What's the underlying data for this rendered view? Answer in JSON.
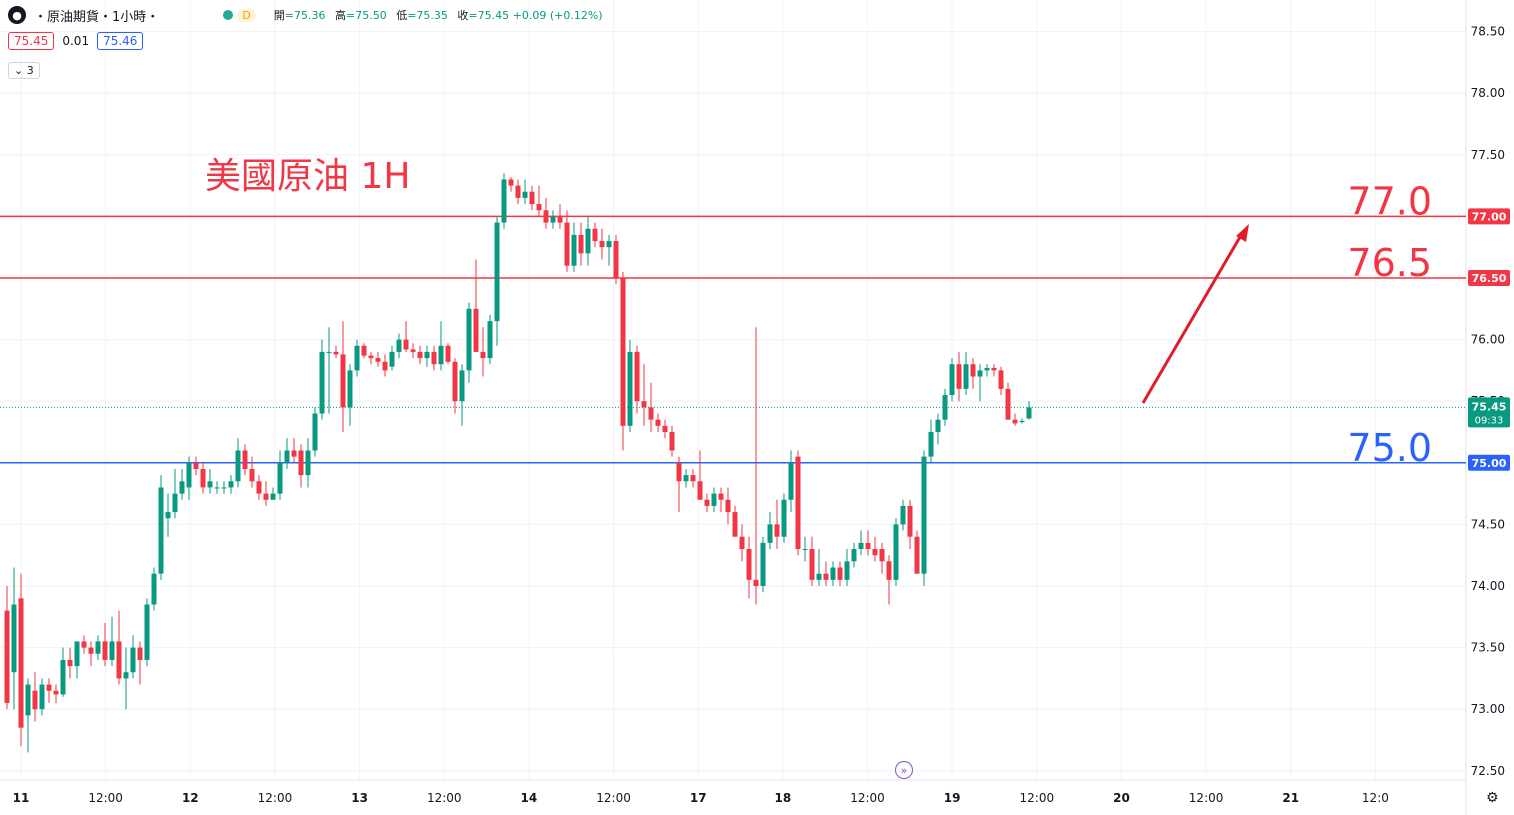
{
  "header": {
    "symbol_icon": "oil-drop-icon",
    "symbol_title": "・原油期貨・1小時・",
    "status_letter": "D",
    "ohlc": [
      {
        "k": "開",
        "v": "=75.36"
      },
      {
        "k": "高",
        "v": "=75.50"
      },
      {
        "k": "低",
        "v": "=75.35"
      },
      {
        "k": "收",
        "v": "=75.45 +0.09 (+0.12%)"
      }
    ]
  },
  "quote": {
    "bid": "75.45",
    "spread": "0.01",
    "ask": "75.46"
  },
  "indicators": {
    "label": "3",
    "icon": "chevron-down-icon"
  },
  "annotation": {
    "title": "美國原油 1H"
  },
  "colors": {
    "up": "#089981",
    "down": "#f23645",
    "support": "#2962ff",
    "resistance": "#f23645",
    "arrow": "#e01e2b"
  },
  "chart_data": {
    "type": "candlestick",
    "ylim": [
      72.45,
      78.6
    ],
    "y_ticks": [
      "78.50",
      "78.00",
      "77.50",
      "77.00",
      "76.50",
      "76.00",
      "75.50",
      "75.00",
      "74.50",
      "74.00",
      "73.50",
      "73.00",
      "72.50"
    ],
    "x_labels": [
      "11",
      "12:00",
      "12",
      "12:00",
      "13",
      "12:00",
      "14",
      "12:00",
      "17",
      "18",
      "12:00",
      "19",
      "12:00",
      "20",
      "12:00",
      "21",
      "12:0"
    ],
    "last_price": {
      "value": "75.45",
      "countdown": "09:33"
    },
    "levels": [
      {
        "value": 77.0,
        "tag": "77.00",
        "text": "77.0",
        "color": "#f23645"
      },
      {
        "value": 76.5,
        "tag": "76.50",
        "text": "76.5",
        "color": "#f23645"
      },
      {
        "value": 75.0,
        "tag": "75.00",
        "text": "75.0",
        "color": "#2962ff"
      }
    ],
    "candles": [
      [
        73.8,
        74.0,
        73.0,
        73.05
      ],
      [
        73.3,
        74.15,
        73.0,
        73.85
      ],
      [
        73.9,
        74.1,
        72.7,
        72.85
      ],
      [
        72.95,
        73.25,
        72.65,
        73.2
      ],
      [
        73.15,
        73.3,
        72.9,
        73.0
      ],
      [
        73.0,
        73.25,
        72.95,
        73.2
      ],
      [
        73.2,
        73.25,
        73.05,
        73.15
      ],
      [
        73.15,
        73.2,
        73.05,
        73.12
      ],
      [
        73.12,
        73.5,
        73.1,
        73.4
      ],
      [
        73.4,
        73.5,
        73.25,
        73.35
      ],
      [
        73.35,
        73.55,
        73.25,
        73.55
      ],
      [
        73.55,
        73.6,
        73.45,
        73.5
      ],
      [
        73.5,
        73.55,
        73.35,
        73.45
      ],
      [
        73.45,
        73.6,
        73.4,
        73.55
      ],
      [
        73.55,
        73.7,
        73.35,
        73.4
      ],
      [
        73.4,
        73.75,
        73.35,
        73.55
      ],
      [
        73.55,
        73.8,
        73.2,
        73.25
      ],
      [
        73.25,
        73.5,
        73.0,
        73.3
      ],
      [
        73.3,
        73.6,
        73.25,
        73.5
      ],
      [
        73.5,
        73.55,
        73.2,
        73.4
      ],
      [
        73.4,
        73.9,
        73.35,
        73.85
      ],
      [
        73.85,
        74.15,
        73.8,
        74.1
      ],
      [
        74.1,
        74.9,
        74.05,
        74.8
      ],
      [
        74.55,
        74.75,
        74.4,
        74.6
      ],
      [
        74.6,
        74.95,
        74.55,
        74.75
      ],
      [
        74.75,
        74.95,
        74.7,
        74.85
      ],
      [
        74.8,
        75.05,
        74.7,
        75.0
      ],
      [
        75.0,
        75.05,
        74.9,
        74.95
      ],
      [
        74.95,
        75.0,
        74.75,
        74.8
      ],
      [
        74.8,
        74.95,
        74.75,
        74.85
      ],
      [
        74.8,
        74.85,
        74.75,
        74.8
      ],
      [
        74.8,
        74.85,
        74.75,
        74.8
      ],
      [
        74.8,
        74.9,
        74.75,
        74.85
      ],
      [
        74.85,
        75.2,
        74.8,
        75.1
      ],
      [
        75.1,
        75.15,
        74.9,
        74.95
      ],
      [
        74.95,
        75.05,
        74.8,
        74.85
      ],
      [
        74.85,
        74.9,
        74.7,
        74.75
      ],
      [
        74.75,
        74.85,
        74.65,
        74.7
      ],
      [
        74.7,
        74.8,
        74.7,
        74.75
      ],
      [
        74.75,
        75.1,
        74.7,
        75.0
      ],
      [
        75.0,
        75.2,
        74.95,
        75.1
      ],
      [
        75.1,
        75.2,
        75.0,
        75.05
      ],
      [
        75.1,
        75.15,
        74.8,
        74.9
      ],
      [
        74.9,
        75.2,
        74.8,
        75.1
      ],
      [
        75.1,
        75.45,
        75.05,
        75.4
      ],
      [
        75.4,
        76.0,
        75.35,
        75.9
      ],
      [
        75.9,
        76.1,
        75.4,
        75.9
      ],
      [
        75.9,
        75.95,
        75.85,
        75.88
      ],
      [
        75.88,
        76.15,
        75.25,
        75.45
      ],
      [
        75.45,
        75.8,
        75.3,
        75.75
      ],
      [
        75.75,
        76.0,
        75.7,
        75.95
      ],
      [
        75.95,
        75.97,
        75.85,
        75.87
      ],
      [
        75.87,
        75.9,
        75.8,
        75.85
      ],
      [
        75.85,
        75.9,
        75.78,
        75.82
      ],
      [
        75.82,
        75.88,
        75.7,
        75.75
      ],
      [
        75.78,
        75.95,
        75.75,
        75.9
      ],
      [
        75.9,
        76.05,
        75.85,
        76.0
      ],
      [
        76.0,
        76.15,
        75.9,
        75.92
      ],
      [
        75.92,
        75.97,
        75.85,
        75.9
      ],
      [
        75.9,
        75.95,
        75.8,
        75.85
      ],
      [
        75.85,
        75.95,
        75.78,
        75.9
      ],
      [
        75.9,
        75.95,
        75.75,
        75.8
      ],
      [
        75.8,
        76.15,
        75.75,
        75.95
      ],
      [
        75.95,
        75.97,
        75.8,
        75.82
      ],
      [
        75.82,
        75.85,
        75.4,
        75.5
      ],
      [
        75.5,
        75.8,
        75.3,
        75.75
      ],
      [
        75.75,
        76.3,
        75.65,
        76.25
      ],
      [
        76.25,
        76.65,
        75.9,
        75.9
      ],
      [
        75.9,
        76.1,
        75.7,
        75.85
      ],
      [
        75.85,
        76.2,
        75.8,
        76.15
      ],
      [
        76.15,
        77.0,
        75.95,
        76.95
      ],
      [
        76.95,
        77.35,
        76.9,
        77.3
      ],
      [
        77.3,
        77.32,
        77.2,
        77.25
      ],
      [
        77.25,
        77.3,
        77.1,
        77.15
      ],
      [
        77.15,
        77.3,
        77.1,
        77.2
      ],
      [
        77.2,
        77.25,
        77.05,
        77.1
      ],
      [
        77.1,
        77.25,
        77.0,
        77.05
      ],
      [
        77.05,
        77.15,
        76.9,
        76.95
      ],
      [
        76.95,
        77.05,
        76.9,
        77.0
      ],
      [
        77.0,
        77.1,
        76.9,
        76.95
      ],
      [
        76.95,
        77.05,
        76.55,
        76.6
      ],
      [
        76.6,
        76.95,
        76.55,
        76.85
      ],
      [
        76.85,
        76.95,
        76.6,
        76.7
      ],
      [
        76.7,
        77.0,
        76.6,
        76.9
      ],
      [
        76.9,
        76.95,
        76.75,
        76.8
      ],
      [
        76.8,
        76.9,
        76.65,
        76.75
      ],
      [
        76.75,
        76.85,
        76.6,
        76.8
      ],
      [
        76.8,
        76.85,
        76.45,
        76.5
      ],
      [
        76.5,
        76.55,
        75.1,
        75.3
      ],
      [
        75.3,
        76.0,
        75.25,
        75.9
      ],
      [
        75.9,
        75.95,
        75.4,
        75.5
      ],
      [
        75.5,
        75.8,
        75.3,
        75.45
      ],
      [
        75.45,
        75.65,
        75.25,
        75.35
      ],
      [
        75.35,
        75.4,
        75.25,
        75.3
      ],
      [
        75.3,
        75.35,
        75.2,
        75.25
      ],
      [
        75.25,
        75.3,
        75.05,
        75.1
      ],
      [
        75.0,
        75.05,
        74.6,
        74.85
      ],
      [
        74.85,
        74.95,
        74.8,
        74.9
      ],
      [
        74.9,
        74.95,
        74.8,
        74.85
      ],
      [
        74.85,
        75.1,
        74.7,
        74.7
      ],
      [
        74.7,
        74.75,
        74.6,
        74.65
      ],
      [
        74.65,
        74.8,
        74.6,
        74.75
      ],
      [
        74.75,
        74.8,
        74.6,
        74.7
      ],
      [
        74.7,
        74.8,
        74.5,
        74.6
      ],
      [
        74.6,
        74.65,
        74.4,
        74.4
      ],
      [
        74.4,
        74.5,
        74.2,
        74.3
      ],
      [
        74.3,
        74.4,
        73.9,
        74.05
      ],
      [
        74.05,
        76.1,
        73.85,
        74.0
      ],
      [
        74.0,
        74.4,
        73.95,
        74.35
      ],
      [
        74.35,
        74.6,
        74.3,
        74.5
      ],
      [
        74.5,
        74.7,
        74.3,
        74.4
      ],
      [
        74.4,
        74.75,
        74.35,
        74.7
      ],
      [
        74.7,
        75.1,
        74.6,
        75.0
      ],
      [
        75.05,
        75.1,
        74.25,
        74.3
      ],
      [
        74.3,
        74.4,
        74.2,
        74.3
      ],
      [
        74.3,
        74.4,
        74.0,
        74.05
      ],
      [
        74.05,
        74.3,
        74.0,
        74.1
      ],
      [
        74.1,
        74.2,
        74.0,
        74.05
      ],
      [
        74.05,
        74.2,
        74.0,
        74.15
      ],
      [
        74.15,
        74.2,
        74.0,
        74.05
      ],
      [
        74.05,
        74.3,
        74.0,
        74.2
      ],
      [
        74.2,
        74.35,
        74.15,
        74.3
      ],
      [
        74.3,
        74.45,
        74.25,
        74.35
      ],
      [
        74.35,
        74.45,
        74.25,
        74.3
      ],
      [
        74.3,
        74.4,
        74.2,
        74.25
      ],
      [
        74.3,
        74.35,
        74.1,
        74.2
      ],
      [
        74.2,
        74.25,
        73.85,
        74.05
      ],
      [
        74.05,
        74.55,
        74.0,
        74.5
      ],
      [
        74.5,
        74.7,
        74.45,
        74.65
      ],
      [
        74.65,
        74.7,
        74.3,
        74.4
      ],
      [
        74.4,
        74.45,
        74.1,
        74.1
      ],
      [
        74.1,
        75.1,
        74.0,
        75.05
      ],
      [
        75.05,
        75.35,
        75.0,
        75.25
      ],
      [
        75.25,
        75.4,
        75.15,
        75.35
      ],
      [
        75.35,
        75.6,
        75.3,
        75.55
      ],
      [
        75.55,
        75.85,
        75.5,
        75.8
      ],
      [
        75.8,
        75.9,
        75.5,
        75.6
      ],
      [
        75.6,
        75.9,
        75.55,
        75.8
      ],
      [
        75.8,
        75.85,
        75.6,
        75.7
      ],
      [
        75.7,
        75.8,
        75.5,
        75.75
      ],
      [
        75.75,
        75.8,
        75.7,
        75.77
      ],
      [
        75.77,
        75.8,
        75.7,
        75.75
      ],
      [
        75.75,
        75.78,
        75.55,
        75.6
      ],
      [
        75.6,
        75.65,
        75.35,
        75.35
      ],
      [
        75.35,
        75.4,
        75.3,
        75.32
      ],
      [
        75.33,
        75.36,
        75.32,
        75.34
      ],
      [
        75.36,
        75.5,
        75.35,
        75.45
      ]
    ]
  }
}
